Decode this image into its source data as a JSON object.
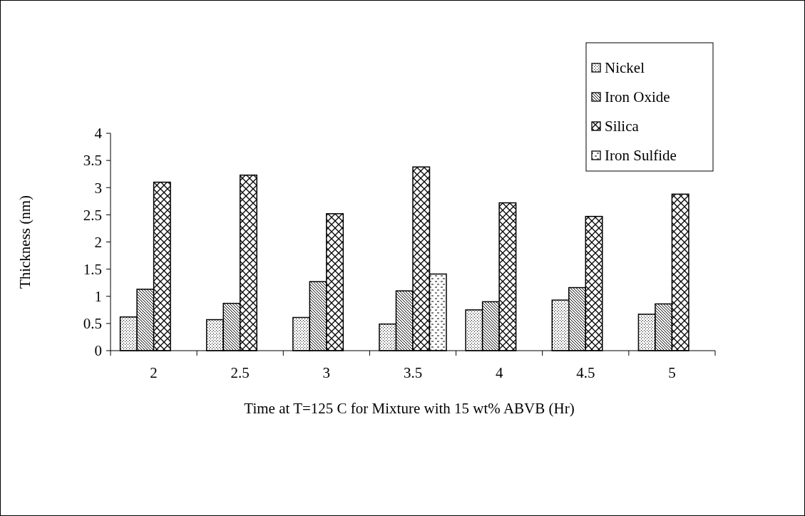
{
  "chart_data": {
    "type": "bar",
    "xlabel": "Time at T=125 C for Mixture with 15 wt% ABVB (Hr)",
    "ylabel": "Thickness (nm)",
    "categories": [
      "2",
      "2.5",
      "3",
      "3.5",
      "4",
      "4.5",
      "5"
    ],
    "series": [
      {
        "name": "Nickel",
        "color": "#000000",
        "values": [
          0.62,
          0.57,
          0.61,
          0.49,
          0.75,
          0.93,
          0.67
        ]
      },
      {
        "name": "Iron Oxide",
        "color": "#000000",
        "values": [
          1.13,
          0.87,
          1.27,
          1.1,
          0.9,
          1.16,
          0.86
        ]
      },
      {
        "name": "Silica",
        "color": "#000000",
        "values": [
          3.1,
          3.23,
          2.52,
          3.38,
          2.72,
          2.47,
          2.88
        ]
      },
      {
        "name": "Iron Sulfide",
        "color": "#000000",
        "values": [
          null,
          null,
          null,
          1.41,
          null,
          null,
          null
        ]
      }
    ],
    "ylim": [
      0,
      4
    ],
    "yticks": [
      0,
      0.5,
      1,
      1.5,
      2,
      2.5,
      3,
      3.5,
      4
    ],
    "grid": false,
    "legend": "top right"
  }
}
